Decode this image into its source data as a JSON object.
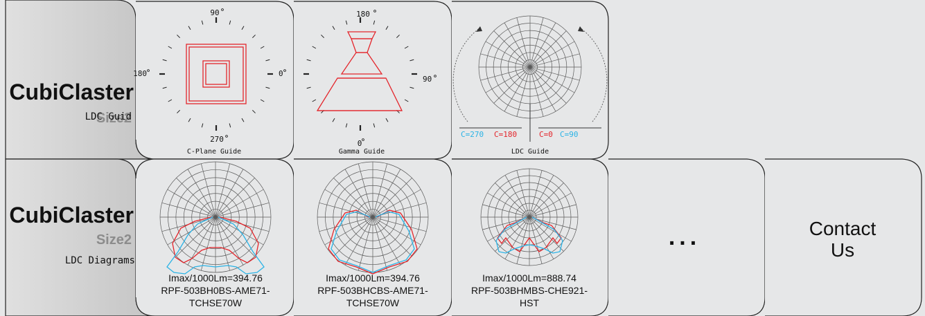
{
  "row1": {
    "brand": "CubiClaster",
    "size": "Size2",
    "subtitle": "LDC Guid",
    "cplane": {
      "deg_top": "90",
      "deg_left": "180",
      "deg_right": "0",
      "deg_bottom": "270",
      "caption": "C-Plane Guide"
    },
    "gamma": {
      "deg_top": "180",
      "deg_right": "90",
      "deg_bottom": "0",
      "caption": "Gamma Guide"
    },
    "ldc": {
      "c270": "C=270",
      "c180": "C=180",
      "c0": "C=0",
      "c90": "C=90",
      "caption": "LDC Guide"
    }
  },
  "row2": {
    "brand": "CubiClaster",
    "size": "Size2",
    "subtitle": "LDC Diagrams",
    "diagrams": [
      {
        "imax": "Imax/1000Lm=394.76",
        "model_line1": "RPF-503BH0BS-AME71-",
        "model_line2": "TCHSE70W"
      },
      {
        "imax": "Imax/1000Lm=394.76",
        "model_line1": "RPF-503BHCBS-AME71-",
        "model_line2": "TCHSE70W"
      },
      {
        "imax": "Imax/1000Lm=888.74",
        "model_line1": "RPF-503BHMBS-CHE921-",
        "model_line2": "HST"
      }
    ],
    "more": "...",
    "contact_line1": "Contact",
    "contact_line2": "Us"
  },
  "colors": {
    "red": "#e4252b",
    "blue": "#2ab3e6",
    "grid": "#5a5a5a",
    "brand_text": "#111111",
    "size_text": "#8c8c8c"
  }
}
